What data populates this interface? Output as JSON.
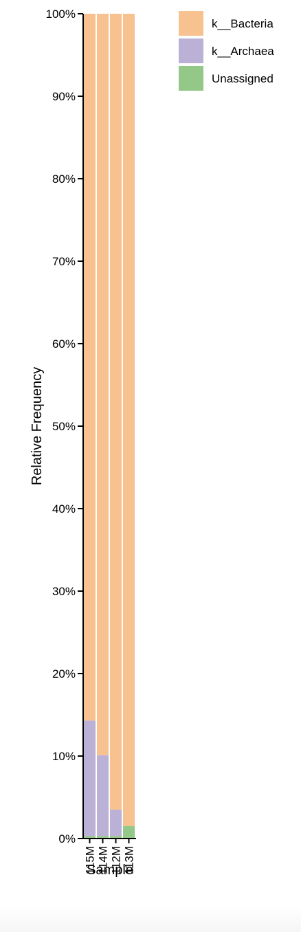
{
  "chart_data": {
    "type": "bar",
    "stacked": true,
    "normalized": true,
    "categories": [
      "115M",
      "114M",
      "112M",
      "113M"
    ],
    "series": [
      {
        "name": "Unassigned",
        "color": "#93c888",
        "values": [
          0.3,
          0.3,
          0.3,
          1.5
        ]
      },
      {
        "name": "k__Archaea",
        "color": "#bbb1d6",
        "values": [
          14.0,
          9.8,
          3.2,
          0.0
        ]
      },
      {
        "name": "k__Bacteria",
        "color": "#f7c290",
        "values": [
          85.7,
          89.9,
          96.5,
          98.5
        ]
      }
    ],
    "legend_order": [
      "k__Bacteria",
      "k__Archaea",
      "Unassigned"
    ],
    "xlabel": "Sample",
    "ylabel": "Relative Frequency",
    "ylim": [
      0,
      100
    ],
    "yticks": [
      "0%",
      "10%",
      "20%",
      "30%",
      "40%",
      "50%",
      "60%",
      "70%",
      "80%",
      "90%",
      "100%"
    ],
    "legend_position": "top-right"
  }
}
